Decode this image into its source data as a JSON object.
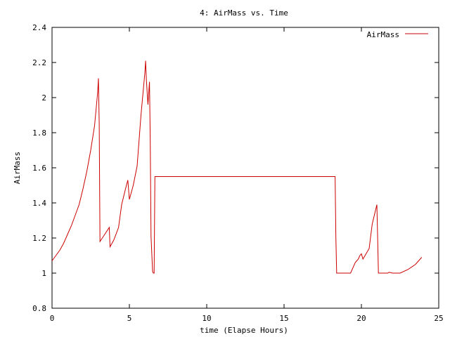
{
  "chart_data": {
    "type": "line",
    "title": "4: AirMass vs. Time",
    "xlabel": "time (Elapse Hours)",
    "ylabel": "AirMass",
    "xlim": [
      0,
      25
    ],
    "ylim": [
      0.8,
      2.4
    ],
    "xticks": [
      0,
      5,
      10,
      15,
      20,
      25
    ],
    "xtick_labels": [
      "0",
      "5",
      "10",
      "15",
      "20",
      "25"
    ],
    "yticks": [
      0.8,
      1.0,
      1.2,
      1.4,
      1.6,
      1.8,
      2.0,
      2.2,
      2.4
    ],
    "ytick_labels": [
      "0.8",
      "1",
      "1.2",
      "1.4",
      "1.6",
      "1.8",
      "2",
      "2.2",
      "2.4"
    ],
    "grid": false,
    "legend_position": "top-right",
    "series": [
      {
        "name": "AirMass",
        "color": "#cc0000",
        "x": [
          0,
          0.25,
          0.5,
          0.75,
          1.0,
          1.25,
          1.5,
          1.75,
          2.0,
          2.25,
          2.5,
          2.75,
          2.95,
          3.0,
          3.05,
          3.1,
          3.4,
          3.7,
          3.75,
          4.0,
          4.3,
          4.5,
          4.75,
          4.9,
          5.0,
          5.25,
          5.5,
          5.75,
          6.0,
          6.05,
          6.1,
          6.2,
          6.3,
          6.35,
          6.4,
          6.5,
          6.55,
          6.6,
          6.65,
          6.7,
          18.3,
          18.35,
          18.4,
          19.0,
          19.3,
          19.6,
          19.8,
          19.9,
          20.0,
          20.1,
          20.3,
          20.5,
          20.7,
          21.0,
          21.05,
          21.1,
          21.4,
          21.7,
          21.8,
          22.0,
          22.5,
          23.0,
          23.5,
          23.9
        ],
        "y": [
          1.07,
          1.1,
          1.13,
          1.17,
          1.22,
          1.27,
          1.33,
          1.39,
          1.48,
          1.58,
          1.7,
          1.84,
          2.03,
          2.11,
          1.85,
          1.18,
          1.22,
          1.26,
          1.15,
          1.19,
          1.26,
          1.39,
          1.48,
          1.53,
          1.42,
          1.5,
          1.61,
          1.9,
          2.14,
          2.21,
          2.1,
          1.96,
          2.09,
          1.75,
          1.21,
          1.01,
          1.0,
          1.0,
          1.55,
          1.55,
          1.55,
          1.2,
          1.0,
          1.0,
          1.0,
          1.06,
          1.08,
          1.1,
          1.11,
          1.08,
          1.11,
          1.14,
          1.28,
          1.39,
          1.2,
          1.0,
          1.0,
          1.0,
          1.005,
          1.0,
          1.0,
          1.02,
          1.05,
          1.09
        ]
      }
    ]
  }
}
